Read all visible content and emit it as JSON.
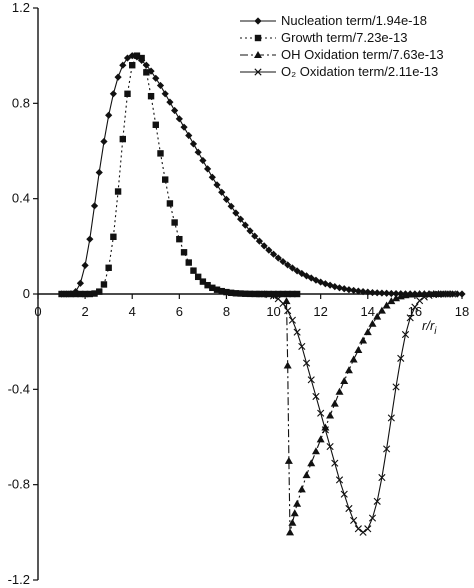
{
  "chart_data": {
    "type": "line",
    "title": "",
    "xlabel": "r/r",
    "xlabel_subscript": "i",
    "ylabel": "",
    "xlim": [
      0,
      18
    ],
    "ylim": [
      -1.2,
      1.2
    ],
    "x_ticks": [
      0,
      2,
      4,
      6,
      8,
      10,
      12,
      14,
      16,
      18
    ],
    "x_tick_labels": [
      "0",
      "2",
      "4",
      "6",
      "8",
      "10",
      "12",
      "14",
      "16",
      "18"
    ],
    "y_ticks": [
      1.2,
      0.8,
      0.4,
      0,
      -0.4,
      -0.8,
      -1.2
    ],
    "y_tick_labels": [
      "1.2",
      "0.8",
      "0.4",
      "0",
      "-0.4",
      "-0.8",
      "-1.2"
    ],
    "grid": false,
    "legend_position": "top-right",
    "series": [
      {
        "name": "Nucleation term/1.94e-18",
        "marker": "diamond",
        "line": "solid",
        "x": [
          1.0,
          1.2,
          1.4,
          1.6,
          1.8,
          2.0,
          2.2,
          2.4,
          2.6,
          2.8,
          3.0,
          3.2,
          3.4,
          3.6,
          3.8,
          4.0,
          4.2,
          4.4,
          4.6,
          4.8,
          5.0,
          5.2,
          5.4,
          5.6,
          5.8,
          6.0,
          6.2,
          6.4,
          6.6,
          6.8,
          7.0,
          7.2,
          7.4,
          7.6,
          7.8,
          8.0,
          8.2,
          8.4,
          8.6,
          8.8,
          9.0,
          9.2,
          9.4,
          9.6,
          9.8,
          10.0,
          10.2,
          10.4,
          10.6,
          10.8,
          11.0,
          11.2,
          11.4,
          11.6,
          11.8,
          12.0,
          12.2,
          12.4,
          12.6,
          12.8,
          13.0,
          13.2,
          13.4,
          13.6,
          13.8,
          14.0,
          14.2,
          14.4,
          14.6,
          14.8,
          15.0,
          15.2,
          15.4,
          15.6,
          15.8,
          16.0,
          16.2,
          16.4,
          16.6,
          16.8,
          17.0,
          17.2,
          17.4,
          17.6,
          17.8,
          18.0
        ],
        "y": [
          0.0,
          0.0,
          0.001,
          0.01,
          0.045,
          0.12,
          0.23,
          0.37,
          0.51,
          0.64,
          0.75,
          0.84,
          0.91,
          0.96,
          0.99,
          1.0,
          0.995,
          0.98,
          0.96,
          0.935,
          0.905,
          0.875,
          0.84,
          0.805,
          0.77,
          0.735,
          0.7,
          0.665,
          0.63,
          0.595,
          0.56,
          0.525,
          0.49,
          0.458,
          0.427,
          0.397,
          0.368,
          0.34,
          0.314,
          0.289,
          0.265,
          0.243,
          0.222,
          0.202,
          0.184,
          0.167,
          0.151,
          0.136,
          0.122,
          0.109,
          0.097,
          0.086,
          0.076,
          0.067,
          0.058,
          0.05,
          0.043,
          0.037,
          0.031,
          0.026,
          0.022,
          0.018,
          0.015,
          0.012,
          0.01,
          0.008,
          0.006,
          0.005,
          0.004,
          0.003,
          0.002,
          0.0015,
          0.001,
          0.0007,
          0.0005,
          0.0003,
          0.0002,
          0.0001,
          0.0,
          0.0,
          0.0,
          0.0,
          0.0,
          0.0,
          0.0,
          0.0
        ]
      },
      {
        "name": "Growth term/7.23e-13",
        "marker": "square",
        "line": "dotted",
        "x": [
          1.0,
          1.2,
          1.4,
          1.6,
          1.8,
          2.0,
          2.2,
          2.4,
          2.6,
          2.8,
          3.0,
          3.2,
          3.4,
          3.6,
          3.8,
          4.0,
          4.2,
          4.4,
          4.6,
          4.8,
          5.0,
          5.2,
          5.4,
          5.6,
          5.8,
          6.0,
          6.2,
          6.4,
          6.6,
          6.8,
          7.0,
          7.2,
          7.4,
          7.6,
          7.8,
          8.0,
          8.2,
          8.4,
          8.6,
          8.8,
          9.0,
          9.2,
          9.4,
          9.6,
          9.8,
          10.0,
          10.2,
          10.4,
          10.6,
          10.8,
          11.0
        ],
        "y": [
          0.0,
          0.0,
          0.0,
          0.0,
          0.0,
          0.0,
          0.0,
          0.002,
          0.01,
          0.04,
          0.11,
          0.24,
          0.43,
          0.65,
          0.84,
          0.96,
          1.0,
          0.99,
          0.93,
          0.83,
          0.71,
          0.59,
          0.48,
          0.38,
          0.3,
          0.23,
          0.175,
          0.132,
          0.098,
          0.072,
          0.052,
          0.037,
          0.026,
          0.018,
          0.012,
          0.008,
          0.005,
          0.003,
          0.002,
          0.001,
          0.0005,
          0.0002,
          0.0,
          0.0,
          0.0,
          0.0,
          0.0,
          0.0,
          0.0,
          0.0,
          0.0
        ]
      },
      {
        "name": "OH Oxidation term/7.63e-13",
        "marker": "triangle",
        "line": "dash-dot",
        "x": [
          10.55,
          10.6,
          10.65,
          10.7,
          10.8,
          10.9,
          11.0,
          11.2,
          11.4,
          11.6,
          11.8,
          12.0,
          12.2,
          12.4,
          12.6,
          12.8,
          13.0,
          13.2,
          13.4,
          13.6,
          13.8,
          14.0,
          14.2,
          14.4,
          14.6,
          14.8,
          15.0,
          15.2,
          15.4,
          15.6,
          15.8,
          16.0,
          16.2,
          16.4,
          16.6,
          16.8,
          17.0
        ],
        "y": [
          -0.03,
          -0.3,
          -0.7,
          -1.0,
          -0.96,
          -0.92,
          -0.88,
          -0.82,
          -0.76,
          -0.71,
          -0.66,
          -0.61,
          -0.56,
          -0.51,
          -0.46,
          -0.41,
          -0.365,
          -0.32,
          -0.275,
          -0.235,
          -0.195,
          -0.16,
          -0.125,
          -0.095,
          -0.07,
          -0.048,
          -0.03,
          -0.018,
          -0.01,
          -0.005,
          -0.002,
          -0.001,
          0.0,
          0.0,
          0.0,
          0.0,
          0.0
        ]
      },
      {
        "name": "O₂ Oxidation term/2.11e-13",
        "marker": "x",
        "line": "solid",
        "x": [
          9.5,
          9.8,
          10.0,
          10.2,
          10.4,
          10.6,
          10.8,
          11.0,
          11.2,
          11.4,
          11.6,
          11.8,
          12.0,
          12.2,
          12.4,
          12.6,
          12.8,
          13.0,
          13.2,
          13.4,
          13.6,
          13.8,
          14.0,
          14.2,
          14.4,
          14.6,
          14.8,
          15.0,
          15.2,
          15.4,
          15.6,
          15.8,
          16.0,
          16.2,
          16.4,
          16.6,
          16.8,
          17.0,
          17.2,
          17.4,
          17.6
        ],
        "y": [
          0.0,
          -0.003,
          -0.008,
          -0.02,
          -0.04,
          -0.07,
          -0.11,
          -0.16,
          -0.22,
          -0.29,
          -0.36,
          -0.43,
          -0.5,
          -0.57,
          -0.64,
          -0.71,
          -0.78,
          -0.84,
          -0.9,
          -0.95,
          -0.985,
          -1.0,
          -0.985,
          -0.94,
          -0.87,
          -0.77,
          -0.65,
          -0.52,
          -0.39,
          -0.27,
          -0.17,
          -0.1,
          -0.055,
          -0.028,
          -0.013,
          -0.006,
          -0.002,
          -0.001,
          0.0,
          0.0,
          0.0
        ]
      }
    ]
  }
}
